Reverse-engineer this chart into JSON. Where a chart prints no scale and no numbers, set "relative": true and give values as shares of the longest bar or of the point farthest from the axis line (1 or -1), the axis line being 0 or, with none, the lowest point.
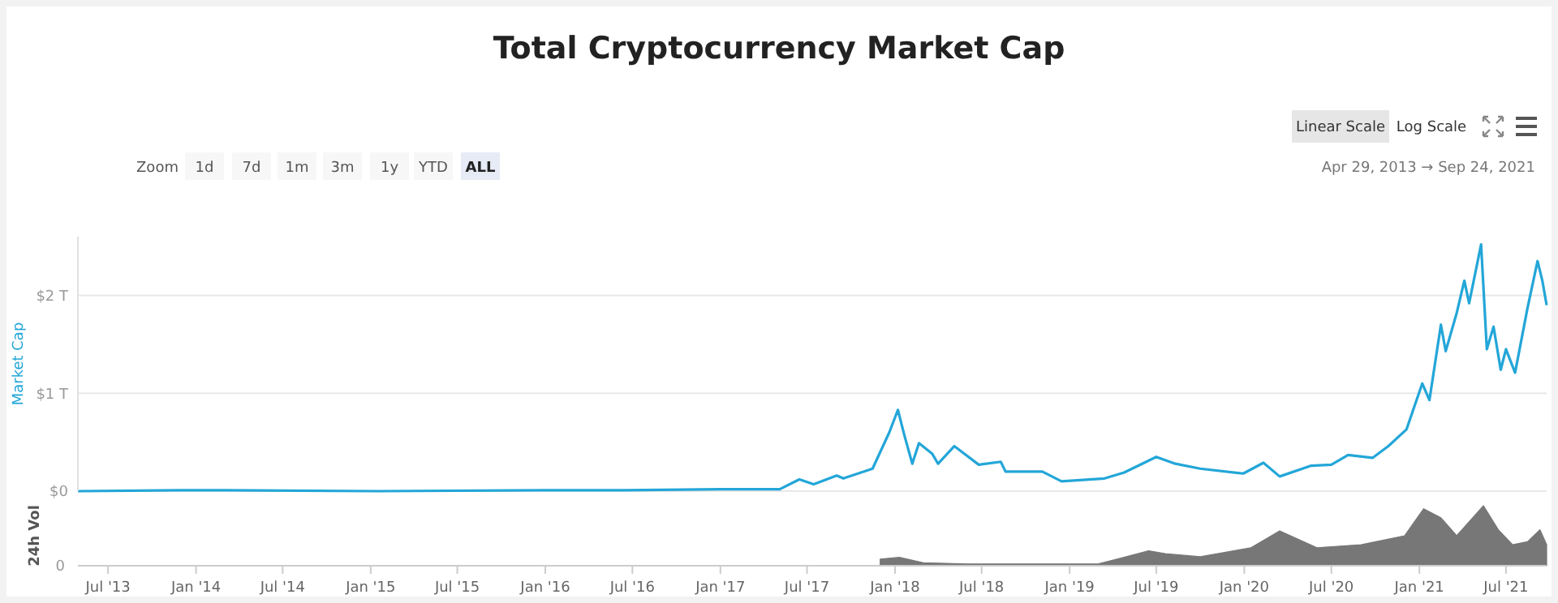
{
  "chart_data": [
    {
      "type": "line",
      "title": "Total Cryptocurrency Market Cap",
      "ylabel": "Market Cap",
      "x": [
        "2013-04-29",
        "2013-12-01",
        "2014-03-01",
        "2015-01-15",
        "2016-01-01",
        "2016-06-15",
        "2017-01-01",
        "2017-03-01",
        "2017-05-05",
        "2017-06-15",
        "2017-07-15",
        "2017-09-01",
        "2017-09-15",
        "2017-11-15",
        "2017-12-20",
        "2018-01-07",
        "2018-01-20",
        "2018-02-06",
        "2018-02-20",
        "2018-03-20",
        "2018-04-01",
        "2018-05-05",
        "2018-06-25",
        "2018-08-10",
        "2018-08-20",
        "2018-11-05",
        "2018-12-15",
        "2019-03-15",
        "2019-04-25",
        "2019-07-01",
        "2019-08-10",
        "2019-10-01",
        "2019-12-30",
        "2020-02-10",
        "2020-03-15",
        "2020-05-20",
        "2020-07-01",
        "2020-08-05",
        "2020-09-25",
        "2020-10-28",
        "2020-12-05",
        "2021-01-07",
        "2021-01-22",
        "2021-02-15",
        "2021-02-25",
        "2021-03-20",
        "2021-04-05",
        "2021-04-15",
        "2021-05-10",
        "2021-05-22",
        "2021-06-05",
        "2021-06-20",
        "2021-07-01",
        "2021-07-20",
        "2021-08-15",
        "2021-09-05",
        "2021-09-15",
        "2021-09-24"
      ],
      "series": [
        {
          "name": null,
          "color": "#23a6d8",
          "values": [
            0.0,
            0.01,
            0.01,
            0.0,
            0.01,
            0.01,
            0.02,
            0.02,
            0.02,
            0.12,
            0.07,
            0.16,
            0.13,
            0.23,
            0.6,
            0.83,
            0.58,
            0.28,
            0.49,
            0.38,
            0.28,
            0.46,
            0.27,
            0.3,
            0.2,
            0.2,
            0.1,
            0.13,
            0.19,
            0.35,
            0.28,
            0.23,
            0.18,
            0.29,
            0.15,
            0.26,
            0.27,
            0.37,
            0.34,
            0.46,
            0.63,
            1.1,
            0.93,
            1.7,
            1.43,
            1.82,
            2.15,
            1.92,
            2.52,
            1.45,
            1.68,
            1.24,
            1.45,
            1.21,
            1.87,
            2.35,
            2.15,
            1.9
          ]
        }
      ],
      "xlim": [
        "2013-04-29",
        "2021-09-24"
      ],
      "ylim": [
        0,
        2.6
      ],
      "yticks": [
        {
          "value": 0,
          "label": "$0"
        },
        {
          "value": 1,
          "label": "$1 T"
        },
        {
          "value": 2,
          "label": "$2 T"
        }
      ],
      "tick_labels": "y",
      "grid": "y",
      "annotations": [
        "Zoom",
        "1d",
        "7d",
        "1m",
        "3m",
        "1y",
        "YTD",
        "ALL",
        "Linear Scale",
        "Log Scale",
        "Apr 29, 2013 → Sep 24, 2021"
      ]
    },
    {
      "type": "area",
      "ylabel": "24h Vol",
      "relative": true,
      "x": [
        "2017-12-01",
        "2018-01-10",
        "2018-03-01",
        "2018-06-01",
        "2018-12-01",
        "2019-03-01",
        "2019-04-15",
        "2019-06-15",
        "2019-07-20",
        "2019-10-01",
        "2020-01-15",
        "2020-03-15",
        "2020-06-01",
        "2020-09-01",
        "2020-12-01",
        "2021-01-10",
        "2021-02-15",
        "2021-03-20",
        "2021-05-15",
        "2021-06-15",
        "2021-07-15",
        "2021-08-15",
        "2021-09-10",
        "2021-09-24"
      ],
      "series": [
        {
          "color": "#777777",
          "values": [
            0.11,
            0.14,
            0.05,
            0.03,
            0.03,
            0.03,
            0.12,
            0.25,
            0.2,
            0.15,
            0.3,
            0.58,
            0.3,
            0.35,
            0.5,
            0.95,
            0.8,
            0.5,
            1.0,
            0.6,
            0.35,
            0.4,
            0.6,
            0.35
          ]
        }
      ],
      "xlim": [
        "2013-04-29",
        "2021-09-24"
      ],
      "xticks": [
        {
          "value": "2013-07-01",
          "label": "Jul '13"
        },
        {
          "value": "2014-01-01",
          "label": "Jan '14"
        },
        {
          "value": "2014-07-01",
          "label": "Jul '14"
        },
        {
          "value": "2015-01-01",
          "label": "Jan '15"
        },
        {
          "value": "2015-07-01",
          "label": "Jul '15"
        },
        {
          "value": "2016-01-01",
          "label": "Jan '16"
        },
        {
          "value": "2016-07-01",
          "label": "Jul '16"
        },
        {
          "value": "2017-01-01",
          "label": "Jan '17"
        },
        {
          "value": "2017-07-01",
          "label": "Jul '17"
        },
        {
          "value": "2018-01-01",
          "label": "Jan '18"
        },
        {
          "value": "2018-07-01",
          "label": "Jul '18"
        },
        {
          "value": "2019-01-01",
          "label": "Jan '19"
        },
        {
          "value": "2019-07-01",
          "label": "Jul '19"
        },
        {
          "value": "2020-01-01",
          "label": "Jan '20"
        },
        {
          "value": "2020-07-01",
          "label": "Jul '20"
        },
        {
          "value": "2021-01-01",
          "label": "Jan '21"
        },
        {
          "value": "2021-07-01",
          "label": "Jul '21"
        }
      ],
      "annotations": [
        "0"
      ]
    }
  ]
}
